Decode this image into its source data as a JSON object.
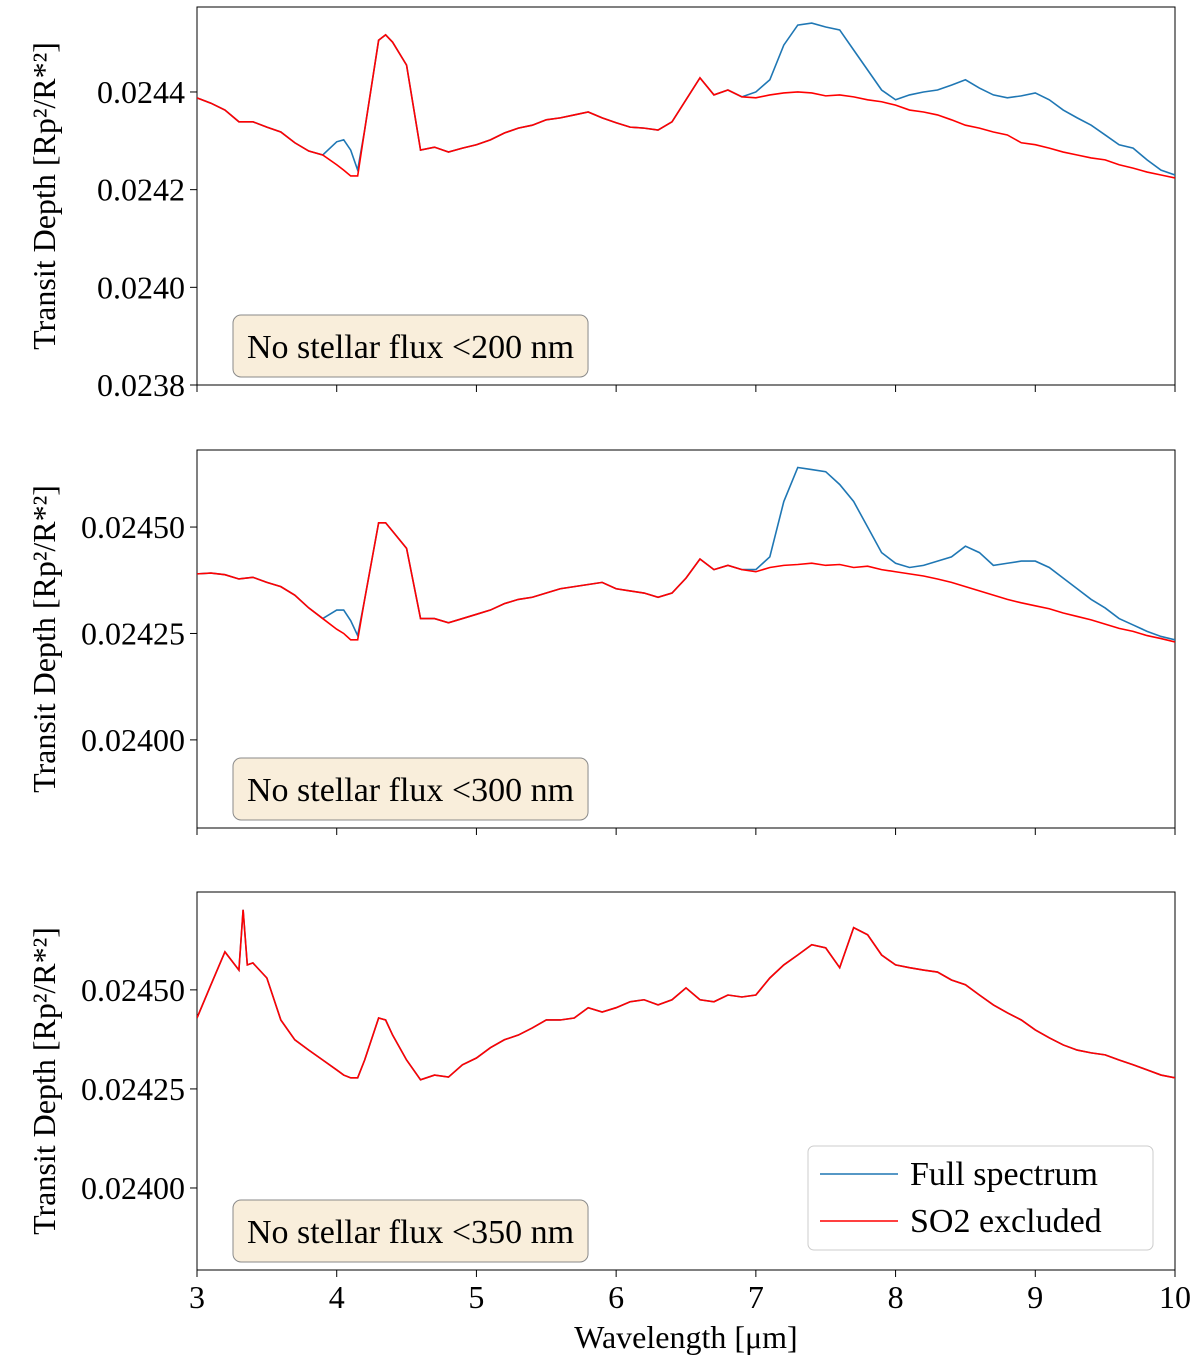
{
  "chart_data": [
    {
      "type": "line",
      "ylabel": "Transit Depth [Rp²/R*²]",
      "annotation": "No stellar flux <200 nm",
      "xlim": [
        3,
        10
      ],
      "xticks": [
        3,
        4,
        5,
        6,
        7,
        8,
        9,
        10
      ],
      "xticklabels": false,
      "ylim": [
        0.0238,
        0.024574
      ],
      "yticks": [
        0.0238,
        {
          "value": 0.024,
          "label": "0.0240"
        },
        0.0242,
        0.0244
      ],
      "x": [
        3.0,
        3.1,
        3.2,
        3.3,
        3.4,
        3.5,
        3.6,
        3.7,
        3.8,
        3.9,
        4.0,
        4.05,
        4.1,
        4.15,
        4.2,
        4.3,
        4.35,
        4.4,
        4.5,
        4.6,
        4.7,
        4.8,
        4.9,
        5.0,
        5.1,
        5.2,
        5.3,
        5.4,
        5.5,
        5.6,
        5.7,
        5.8,
        5.9,
        6.0,
        6.1,
        6.2,
        6.3,
        6.4,
        6.5,
        6.6,
        6.7,
        6.8,
        6.9,
        7.0,
        7.1,
        7.2,
        7.3,
        7.4,
        7.5,
        7.6,
        7.7,
        7.8,
        7.9,
        8.0,
        8.1,
        8.2,
        8.3,
        8.4,
        8.5,
        8.6,
        8.7,
        8.8,
        8.9,
        9.0,
        9.1,
        9.2,
        9.3,
        9.4,
        9.5,
        9.6,
        9.7,
        9.8,
        9.9,
        10.0
      ],
      "series": [
        {
          "name": "Full spectrum",
          "color": "#1f77b4",
          "values": [
            0.024388,
            0.024377,
            0.024363,
            0.024339,
            0.024339,
            0.024328,
            0.024318,
            0.024296,
            0.024279,
            0.024271,
            0.024298,
            0.024302,
            0.024281,
            0.02424,
            0.024322,
            0.024506,
            0.024517,
            0.024502,
            0.024455,
            0.024281,
            0.024287,
            0.024277,
            0.024285,
            0.024292,
            0.024302,
            0.024316,
            0.024326,
            0.024332,
            0.024343,
            0.024347,
            0.024353,
            0.024359,
            0.024347,
            0.024337,
            0.024328,
            0.024326,
            0.024322,
            0.024339,
            0.024384,
            0.024429,
            0.024394,
            0.024404,
            0.02439,
            0.0244,
            0.024425,
            0.024496,
            0.024537,
            0.024541,
            0.024533,
            0.024527,
            0.024486,
            0.024445,
            0.024404,
            0.024384,
            0.024394,
            0.0244,
            0.024404,
            0.024414,
            0.024425,
            0.024408,
            0.024394,
            0.024388,
            0.024392,
            0.024398,
            0.024384,
            0.024363,
            0.024347,
            0.024332,
            0.024312,
            0.024292,
            0.024285,
            0.024261,
            0.02424,
            0.02423
          ]
        },
        {
          "name": "SO2 excluded",
          "color": "#ff0000",
          "values": [
            0.024388,
            0.024377,
            0.024363,
            0.024339,
            0.024339,
            0.024328,
            0.024318,
            0.024296,
            0.024279,
            0.024271,
            0.024251,
            0.02424,
            0.024228,
            0.024228,
            0.024322,
            0.024506,
            0.024517,
            0.024502,
            0.024455,
            0.024281,
            0.024287,
            0.024277,
            0.024285,
            0.024292,
            0.024302,
            0.024316,
            0.024326,
            0.024332,
            0.024343,
            0.024347,
            0.024353,
            0.024359,
            0.024347,
            0.024337,
            0.024328,
            0.024326,
            0.024322,
            0.024339,
            0.024384,
            0.024429,
            0.024394,
            0.024404,
            0.02439,
            0.024388,
            0.024394,
            0.024398,
            0.0244,
            0.024398,
            0.024392,
            0.024394,
            0.02439,
            0.024384,
            0.02438,
            0.024373,
            0.024363,
            0.024359,
            0.024353,
            0.024343,
            0.024332,
            0.024326,
            0.024318,
            0.024312,
            0.024296,
            0.024292,
            0.024285,
            0.024277,
            0.024271,
            0.024265,
            0.024261,
            0.024251,
            0.024244,
            0.024236,
            0.02423,
            0.024224
          ]
        }
      ]
    },
    {
      "type": "line",
      "ylabel": "Transit Depth [Rp²/R*²]",
      "annotation": "No stellar flux <300 nm",
      "xlim": [
        3,
        10
      ],
      "xticks": [
        3,
        4,
        5,
        6,
        7,
        8,
        9,
        10
      ],
      "xticklabels": false,
      "ylim": [
        0.023793,
        0.024681
      ],
      "yticks": [
        {
          "value": 0.024,
          "label": "0.02400"
        },
        {
          "value": 0.02425,
          "label": "0.02425"
        },
        {
          "value": 0.0245,
          "label": "0.02450"
        }
      ],
      "x": [
        3.0,
        3.1,
        3.2,
        3.3,
        3.4,
        3.5,
        3.6,
        3.7,
        3.8,
        3.9,
        4.0,
        4.05,
        4.1,
        4.15,
        4.2,
        4.3,
        4.35,
        4.4,
        4.5,
        4.6,
        4.7,
        4.8,
        4.9,
        5.0,
        5.1,
        5.2,
        5.3,
        5.4,
        5.5,
        5.6,
        5.7,
        5.8,
        5.9,
        6.0,
        6.1,
        6.2,
        6.3,
        6.4,
        6.5,
        6.6,
        6.7,
        6.8,
        6.9,
        7.0,
        7.1,
        7.2,
        7.3,
        7.4,
        7.5,
        7.6,
        7.7,
        7.8,
        7.9,
        8.0,
        8.1,
        8.2,
        8.3,
        8.4,
        8.5,
        8.6,
        8.7,
        8.8,
        8.9,
        9.0,
        9.1,
        9.2,
        9.3,
        9.4,
        9.5,
        9.6,
        9.7,
        9.8,
        9.9,
        10.0
      ],
      "series": [
        {
          "name": "Full spectrum",
          "color": "#1f77b4",
          "values": [
            0.02439,
            0.024392,
            0.024388,
            0.024378,
            0.024382,
            0.02437,
            0.02436,
            0.02434,
            0.02431,
            0.024285,
            0.024305,
            0.024305,
            0.02428,
            0.024245,
            0.02433,
            0.02451,
            0.02451,
            0.02449,
            0.02445,
            0.024285,
            0.024285,
            0.024275,
            0.024285,
            0.024295,
            0.024305,
            0.02432,
            0.02433,
            0.024335,
            0.024345,
            0.024355,
            0.02436,
            0.024365,
            0.02437,
            0.024355,
            0.02435,
            0.024345,
            0.024335,
            0.024345,
            0.02438,
            0.024425,
            0.0244,
            0.02441,
            0.0244,
            0.0244,
            0.02443,
            0.02456,
            0.02464,
            0.024635,
            0.02463,
            0.0246,
            0.02456,
            0.0245,
            0.02444,
            0.024415,
            0.024405,
            0.02441,
            0.02442,
            0.02443,
            0.024455,
            0.02444,
            0.02441,
            0.024415,
            0.02442,
            0.02442,
            0.024405,
            0.02438,
            0.024355,
            0.02433,
            0.02431,
            0.024285,
            0.02427,
            0.024255,
            0.024243,
            0.024235
          ]
        },
        {
          "name": "SO2 excluded",
          "color": "#ff0000",
          "values": [
            0.02439,
            0.024392,
            0.024388,
            0.024378,
            0.024382,
            0.02437,
            0.02436,
            0.02434,
            0.02431,
            0.024285,
            0.02426,
            0.02425,
            0.024235,
            0.024235,
            0.02433,
            0.02451,
            0.02451,
            0.02449,
            0.02445,
            0.024285,
            0.024285,
            0.024275,
            0.024285,
            0.024295,
            0.024305,
            0.02432,
            0.02433,
            0.024335,
            0.024345,
            0.024355,
            0.02436,
            0.024365,
            0.02437,
            0.024355,
            0.02435,
            0.024345,
            0.024335,
            0.024345,
            0.02438,
            0.024425,
            0.0244,
            0.02441,
            0.0244,
            0.024395,
            0.024405,
            0.02441,
            0.024412,
            0.024415,
            0.02441,
            0.024412,
            0.024405,
            0.024408,
            0.0244,
            0.024395,
            0.02439,
            0.024385,
            0.024378,
            0.02437,
            0.02436,
            0.02435,
            0.02434,
            0.02433,
            0.024322,
            0.024315,
            0.024308,
            0.024298,
            0.02429,
            0.024282,
            0.024272,
            0.024262,
            0.024255,
            0.024245,
            0.024238,
            0.02423
          ]
        }
      ]
    },
    {
      "type": "line",
      "ylabel": "Transit Depth [Rp²/R*²]",
      "xlabel": "Wavelength [μm]",
      "annotation": "No stellar flux <350 nm",
      "legend": "lower right",
      "xlim": [
        3,
        10
      ],
      "xticks": [
        3,
        4,
        5,
        6,
        7,
        8,
        9,
        10
      ],
      "xticklabels": true,
      "ylim": [
        0.023793,
        0.024747
      ],
      "yticks": [
        {
          "value": 0.024,
          "label": "0.02400"
        },
        {
          "value": 0.02425,
          "label": "0.02425"
        },
        {
          "value": 0.0245,
          "label": "0.02450"
        }
      ],
      "x": [
        3.0,
        3.1,
        3.2,
        3.3,
        3.33,
        3.36,
        3.4,
        3.5,
        3.6,
        3.7,
        3.8,
        3.9,
        4.0,
        4.05,
        4.1,
        4.15,
        4.2,
        4.3,
        4.35,
        4.4,
        4.5,
        4.6,
        4.7,
        4.8,
        4.9,
        5.0,
        5.1,
        5.2,
        5.3,
        5.4,
        5.5,
        5.6,
        5.7,
        5.8,
        5.9,
        6.0,
        6.1,
        6.2,
        6.3,
        6.4,
        6.5,
        6.6,
        6.7,
        6.8,
        6.9,
        7.0,
        7.1,
        7.2,
        7.3,
        7.4,
        7.5,
        7.6,
        7.7,
        7.8,
        7.9,
        8.0,
        8.1,
        8.2,
        8.3,
        8.4,
        8.5,
        8.6,
        8.7,
        8.8,
        8.9,
        9.0,
        9.1,
        9.2,
        9.3,
        9.4,
        9.5,
        9.6,
        9.7,
        9.8,
        9.9,
        10.0
      ],
      "series": [
        {
          "name": "Full spectrum",
          "color": "#1f77b4",
          "values": [
            0.024429,
            0.024513,
            0.024596,
            0.02455,
            0.024702,
            0.024563,
            0.024568,
            0.02453,
            0.024424,
            0.024374,
            0.024348,
            0.024323,
            0.024298,
            0.024285,
            0.024278,
            0.024278,
            0.024323,
            0.024429,
            0.024424,
            0.024386,
            0.024323,
            0.024273,
            0.024285,
            0.02428,
            0.024311,
            0.024328,
            0.024354,
            0.024374,
            0.024386,
            0.024404,
            0.024424,
            0.024424,
            0.024429,
            0.024455,
            0.024444,
            0.024455,
            0.02447,
            0.024475,
            0.024462,
            0.024475,
            0.024505,
            0.024475,
            0.02447,
            0.024487,
            0.024482,
            0.024487,
            0.02453,
            0.024563,
            0.024588,
            0.024614,
            0.024606,
            0.024556,
            0.024657,
            0.024639,
            0.024588,
            0.024563,
            0.024556,
            0.02455,
            0.024545,
            0.024525,
            0.024513,
            0.024487,
            0.024462,
            0.024442,
            0.024424,
            0.024399,
            0.024379,
            0.024361,
            0.024348,
            0.024341,
            0.024336,
            0.024323,
            0.024311,
            0.024298,
            0.024285,
            0.024278
          ]
        },
        {
          "name": "SO2 excluded",
          "color": "#ff0000",
          "values": [
            0.024429,
            0.024513,
            0.024596,
            0.02455,
            0.024702,
            0.024563,
            0.024568,
            0.02453,
            0.024424,
            0.024374,
            0.024348,
            0.024323,
            0.024298,
            0.024285,
            0.024278,
            0.024278,
            0.024323,
            0.024429,
            0.024424,
            0.024386,
            0.024323,
            0.024273,
            0.024285,
            0.02428,
            0.024311,
            0.024328,
            0.024354,
            0.024374,
            0.024386,
            0.024404,
            0.024424,
            0.024424,
            0.024429,
            0.024455,
            0.024444,
            0.024455,
            0.02447,
            0.024475,
            0.024462,
            0.024475,
            0.024505,
            0.024475,
            0.02447,
            0.024487,
            0.024482,
            0.024487,
            0.02453,
            0.024563,
            0.024588,
            0.024614,
            0.024606,
            0.024556,
            0.024657,
            0.024639,
            0.024588,
            0.024563,
            0.024556,
            0.02455,
            0.024545,
            0.024525,
            0.024513,
            0.024487,
            0.024462,
            0.024442,
            0.024424,
            0.024399,
            0.024379,
            0.024361,
            0.024348,
            0.024341,
            0.024336,
            0.024323,
            0.024311,
            0.024298,
            0.024285,
            0.024278
          ]
        }
      ]
    }
  ]
}
